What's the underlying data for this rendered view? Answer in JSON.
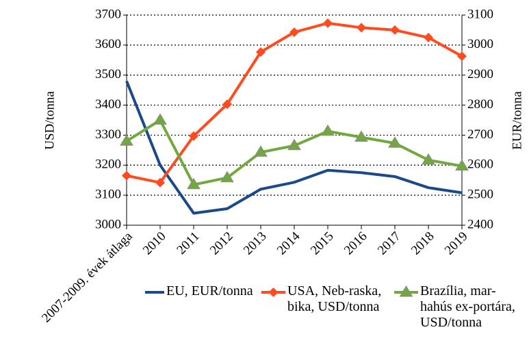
{
  "chart_data": {
    "type": "line",
    "categories": [
      "2007-2009. évek átlaga",
      "2010",
      "2011",
      "2012",
      "2013",
      "2014",
      "2015",
      "2016",
      "2017",
      "2018",
      "2019"
    ],
    "y_label": "USD/tonna",
    "y2_label": "EUR/tonna",
    "ylim": [
      3000,
      3700
    ],
    "yticks": [
      3000,
      3100,
      3200,
      3300,
      3400,
      3500,
      3600,
      3700
    ],
    "y2lim": [
      2400,
      3100
    ],
    "y2ticks": [
      2400,
      2500,
      2600,
      2700,
      2800,
      2900,
      3000,
      3100
    ],
    "grid": true,
    "legend": "bottom",
    "series": [
      {
        "name": "EU, EUR/tonna",
        "color": "#1b4a8a",
        "axis": "y2",
        "marker": "none",
        "values": [
          2880,
          2600,
          2440,
          2455,
          2520,
          2543,
          2583,
          2575,
          2562,
          2525,
          2508
        ]
      },
      {
        "name": "USA, Neb-raska, bika, USD/tonna",
        "color": "#ff4b1f",
        "marker": "diamond",
        "values": [
          3165,
          3142,
          3297,
          3403,
          3577,
          3643,
          3673,
          3658,
          3650,
          3625,
          3563
        ]
      },
      {
        "name": "Brazília, mar-hahús ex-portára, USD/tonna",
        "color": "#72a83e",
        "marker": "triangle",
        "values": [
          3280,
          3350,
          3135,
          3158,
          3243,
          3265,
          3313,
          3293,
          3273,
          3217,
          3197
        ]
      }
    ]
  }
}
